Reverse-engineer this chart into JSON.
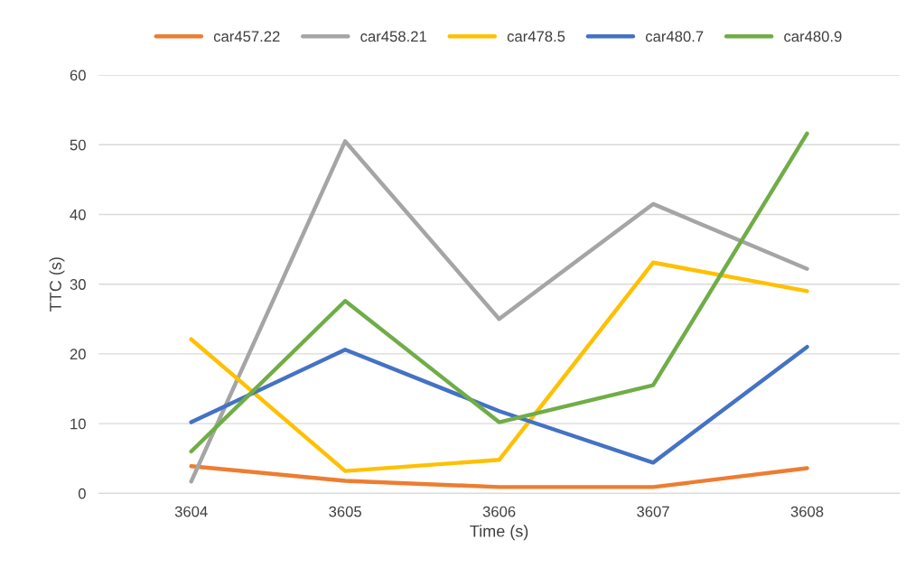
{
  "chart_data": {
    "type": "line",
    "xlabel": "Time (s)",
    "ylabel": "TTC (s)",
    "categories": [
      "3604",
      "3605",
      "3606",
      "3607",
      "3608"
    ],
    "series": [
      {
        "name": "car457.22",
        "color": "#ed7d31",
        "values": [
          3.9,
          1.8,
          0.9,
          0.9,
          3.6
        ]
      },
      {
        "name": "car458.21",
        "color": "#a5a5a5",
        "values": [
          1.7,
          50.5,
          25,
          41.5,
          32.2
        ]
      },
      {
        "name": "car478.5",
        "color": "#ffc000",
        "values": [
          22.1,
          3.2,
          4.8,
          33.1,
          29
        ]
      },
      {
        "name": "car480.7",
        "color": "#4472c4",
        "values": [
          10.2,
          20.6,
          11.8,
          4.4,
          21
        ]
      },
      {
        "name": "car480.9",
        "color": "#70ad47",
        "values": [
          6,
          27.6,
          10.2,
          15.5,
          51.6
        ]
      }
    ],
    "ylim": [
      0,
      60
    ],
    "yticks": [
      0,
      10,
      20,
      30,
      40,
      50,
      60
    ],
    "grid": "y",
    "legend": "top",
    "marker": "none",
    "line_style": "solid"
  }
}
